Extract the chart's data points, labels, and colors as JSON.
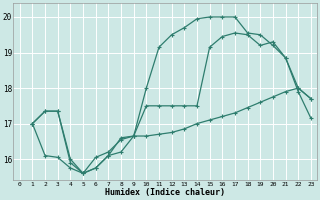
{
  "title": "",
  "xlabel": "Humidex (Indice chaleur)",
  "ylabel": "",
  "background_color": "#cde8e5",
  "grid_color": "#ffffff",
  "line_color": "#2e7d6e",
  "xlim": [
    -0.5,
    23.5
  ],
  "ylim": [
    15.4,
    20.4
  ],
  "yticks": [
    16,
    17,
    18,
    19,
    20
  ],
  "xticks": [
    0,
    1,
    2,
    3,
    4,
    5,
    6,
    7,
    8,
    9,
    10,
    11,
    12,
    13,
    14,
    15,
    16,
    17,
    18,
    19,
    20,
    21,
    22,
    23
  ],
  "line1_x": [
    1,
    2,
    3,
    4,
    5,
    6,
    7,
    8,
    9,
    10,
    11,
    12,
    13,
    14,
    15,
    16,
    17,
    18,
    19,
    20,
    21,
    22,
    23
  ],
  "line1_y": [
    17.0,
    17.35,
    17.35,
    16.0,
    15.6,
    15.75,
    16.1,
    16.2,
    16.65,
    18.0,
    19.15,
    19.5,
    19.7,
    19.95,
    20.0,
    20.0,
    20.0,
    19.55,
    19.5,
    19.2,
    18.85,
    17.9,
    17.15
  ],
  "line2_x": [
    1,
    2,
    3,
    4,
    5,
    6,
    7,
    8,
    9,
    10,
    11,
    12,
    13,
    14,
    15,
    16,
    17,
    18,
    19,
    20,
    21,
    22,
    23
  ],
  "line2_y": [
    17.0,
    17.35,
    17.35,
    15.9,
    15.6,
    15.75,
    16.1,
    16.6,
    16.65,
    17.5,
    17.5,
    17.5,
    17.5,
    17.5,
    19.15,
    19.45,
    19.55,
    19.5,
    19.2,
    19.3,
    18.85,
    18.0,
    17.7
  ],
  "line3_x": [
    1,
    2,
    3,
    4,
    5,
    6,
    7,
    8,
    9,
    10,
    11,
    12,
    13,
    14,
    15,
    16,
    17,
    18,
    19,
    20,
    21,
    22,
    23
  ],
  "line3_y": [
    17.0,
    16.1,
    16.05,
    15.75,
    15.6,
    16.05,
    16.2,
    16.55,
    16.65,
    16.65,
    16.7,
    16.75,
    16.85,
    17.0,
    17.1,
    17.2,
    17.3,
    17.45,
    17.6,
    17.75,
    17.9,
    18.0,
    17.7
  ]
}
